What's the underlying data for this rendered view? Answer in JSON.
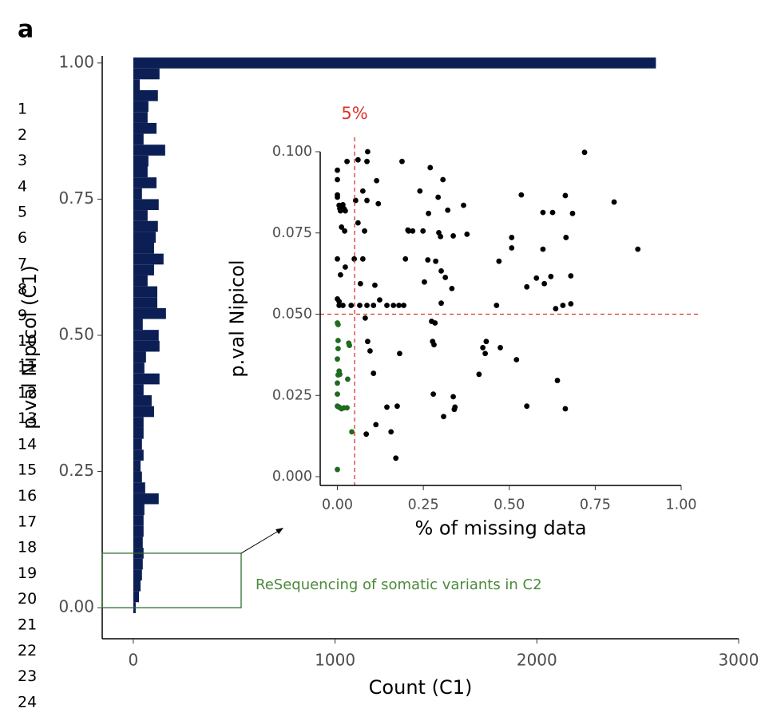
{
  "panel_label": "a",
  "line_numbers": [
    "1",
    "2",
    "3",
    "4",
    "5",
    "6",
    "7",
    "8",
    "9",
    "10",
    "11",
    "12",
    "13",
    "14",
    "15",
    "16",
    "17",
    "18",
    "19",
    "20",
    "21",
    "22",
    "23",
    "24"
  ],
  "chart_data": [
    {
      "type": "histogram",
      "orientation": "horizontal",
      "xlabel": "Count (C1)",
      "ylabel": "p.val Nipicol (C1)",
      "color": "#0b1f55",
      "bins": [
        -0.01,
        0.01,
        0.03,
        0.05,
        0.07,
        0.09,
        0.11,
        0.13,
        0.15,
        0.17,
        0.19,
        0.21,
        0.23,
        0.25,
        0.27,
        0.29,
        0.31,
        0.33,
        0.35,
        0.37,
        0.39,
        0.41,
        0.43,
        0.45,
        0.47,
        0.49,
        0.51,
        0.53,
        0.55,
        0.57,
        0.59,
        0.61,
        0.63,
        0.65,
        0.67,
        0.69,
        0.71,
        0.73,
        0.75,
        0.77,
        0.79,
        0.81,
        0.83,
        0.85,
        0.87,
        0.89,
        0.91,
        0.93,
        0.95,
        0.97,
        0.99,
        1.01
      ],
      "counts": [
        12,
        28,
        36,
        43,
        47,
        51,
        47,
        51,
        51,
        55,
        126,
        59,
        43,
        36,
        51,
        43,
        51,
        51,
        103,
        91,
        51,
        130,
        55,
        63,
        130,
        126,
        47,
        162,
        119,
        119,
        71,
        103,
        150,
        103,
        111,
        122,
        71,
        126,
        43,
        115,
        71,
        75,
        158,
        51,
        115,
        71,
        75,
        122,
        32,
        130,
        2590
      ],
      "xlim": [
        -154,
        3000
      ],
      "ylim": [
        -0.057,
        1.013
      ],
      "xticks": [
        0,
        1000,
        2000,
        3000
      ],
      "yticks": [
        {
          "value": 0,
          "label": "0.00"
        },
        {
          "value": 0.25,
          "label": "0.25"
        },
        {
          "value": 0.5,
          "label": "0.50"
        },
        {
          "value": 0.75,
          "label": "0.75"
        },
        {
          "value": 1,
          "label": "1.00"
        }
      ],
      "highlight": [
        0,
        0.1
      ],
      "highlight_color": "#2e6b2e",
      "annotation": "ReSequencing of somatic variants in C2"
    },
    {
      "type": "scatter",
      "xlabel": "% of missing data",
      "ylabel": "p.val Nipicol",
      "xlim": [
        -0.05,
        1.0
      ],
      "ylim": [
        -0.0027,
        0.1
      ],
      "xticks": [
        {
          "value": 0,
          "label": "0.00"
        },
        {
          "value": 0.25,
          "label": "0.25"
        },
        {
          "value": 0.5,
          "label": "0.50"
        },
        {
          "value": 0.75,
          "label": "0.75"
        },
        {
          "value": 1,
          "label": "1.00"
        }
      ],
      "yticks": [
        {
          "value": 0,
          "label": "0.000"
        },
        {
          "value": 0.025,
          "label": "0.025"
        },
        {
          "value": 0.05,
          "label": "0.050"
        },
        {
          "value": 0.075,
          "label": "0.075"
        },
        {
          "value": 0.1,
          "label": "0.100"
        }
      ],
      "vline": 0.05,
      "hline": 0.05,
      "reference_color": "#e0312b",
      "reference_label": "5%",
      "series": [
        {
          "color": "#000000",
          "x": [
            0,
            0,
            0,
            0,
            0.005,
            0.007,
            0.009,
            0.016,
            0.019,
            0.023,
            0.028,
            0.06,
            0.088,
            0.114,
            0.086,
            0.086,
            0.119,
            0.053,
            0.074,
            0.06,
            0.012,
            0.021,
            0.079,
            0,
            0.049,
            0.009,
            0.074,
            0.023,
            0,
            0.005,
            0.005,
            0.016,
            0.04,
            0.065,
            0.086,
            0.105,
            0.109,
            0.123,
            0.144,
            0.163,
            0.179,
            0.193,
            0.067,
            0.081,
            0.088,
            0.105,
            0.095,
            0.084,
            0.112,
            0.144,
            0.156,
            0.17,
            0.174,
            0.181,
            0.188,
            0.207,
            0.198,
            0.205,
            0.219,
            0.24,
            0.249,
            0.265,
            0.253,
            0.263,
            0.27,
            0.286,
            0.293,
            0.295,
            0.3,
            0.302,
            0.307,
            0.309,
            0.314,
            0.321,
            0.333,
            0.337,
            0.367,
            0.377,
            0.274,
            0.277,
            0.281,
            0.279,
            0.284,
            0.302,
            0.337,
            0.34,
            0.342,
            0.47,
            0.463,
            0.43,
            0.433,
            0.423,
            0.412,
            0.474,
            0.521,
            0.507,
            0.507,
            0.535,
            0.551,
            0.598,
            0.579,
            0.598,
            0.602,
            0.621,
            0.626,
            0.635,
            0.663,
            0.656,
            0.719,
            0.684,
            0.551,
            0.663,
            0.805,
            0.874,
            0.665,
            0.679,
            0.679,
            0.64
          ],
          "y": [
            0.0943,
            0.0914,
            0.0867,
            0.086,
            0.0835,
            0.0825,
            0.0818,
            0.0837,
            0.0825,
            0.0818,
            0.097,
            0.0975,
            0.1,
            0.0911,
            0.097,
            0.085,
            0.084,
            0.085,
            0.0879,
            0.0781,
            0.0768,
            0.0756,
            0.0756,
            0.067,
            0.067,
            0.0621,
            0.067,
            0.0645,
            0.0547,
            0.0539,
            0.0527,
            0.0527,
            0.0527,
            0.0527,
            0.0527,
            0.0527,
            0.0589,
            0.0544,
            0.0527,
            0.0527,
            0.0527,
            0.0527,
            0.0594,
            0.0488,
            0.0416,
            0.0318,
            0.0387,
            0.0131,
            0.016,
            0.0214,
            0.0138,
            0.0057,
            0.0217,
            0.0379,
            0.097,
            0.0756,
            0.067,
            0.0759,
            0.0756,
            0.0879,
            0.0756,
            0.081,
            0.0599,
            0.0667,
            0.0951,
            0.0663,
            0.086,
            0.0751,
            0.0739,
            0.0633,
            0.0914,
            0.0185,
            0.0613,
            0.082,
            0.0579,
            0.0741,
            0.0835,
            0.0746,
            0.0478,
            0.0416,
            0.0406,
            0.0254,
            0.0473,
            0.0534,
            0.0246,
            0.0207,
            0.0214,
            0.0663,
            0.0527,
            0.0379,
            0.0416,
            0.0397,
            0.0315,
            0.0397,
            0.036,
            0.0736,
            0.0704,
            0.0867,
            0.0584,
            0.0813,
            0.0611,
            0.07,
            0.0594,
            0.0616,
            0.0813,
            0.0517,
            0.0865,
            0.0527,
            0.0998,
            0.081,
            0.0217,
            0.0209,
            0.0845,
            0.07,
            0.0736,
            0.0618,
            0.0532,
            0.0296
          ]
        },
        {
          "color": "#1f6b1f",
          "x": [
            0,
            0.002,
            0.002,
            0.002,
            0,
            0.005,
            0.007,
            0.002,
            0,
            0,
            0,
            0.005,
            0.012,
            0.019,
            0.028,
            0.033,
            0.035,
            0.03,
            0.042,
            0
          ],
          "y": [
            0.0473,
            0.0468,
            0.0419,
            0.0394,
            0.0362,
            0.0325,
            0.0315,
            0.0313,
            0.0288,
            0.0254,
            0.0217,
            0.0214,
            0.0209,
            0.0212,
            0.0212,
            0.0411,
            0.0404,
            0.03,
            0.0138,
            0.0022
          ]
        }
      ]
    }
  ]
}
